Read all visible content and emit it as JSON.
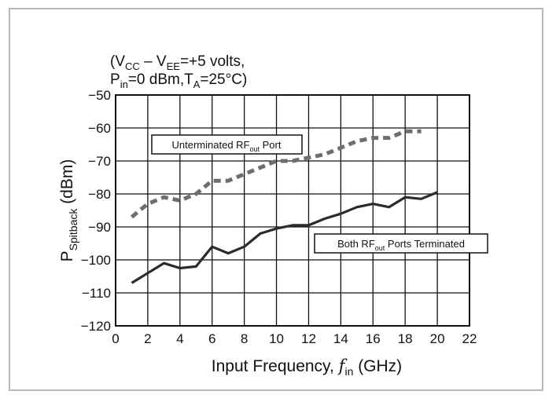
{
  "chart_data": {
    "type": "line",
    "title": "",
    "conditions": {
      "line1": {
        "prefix": "(V",
        "cc_sub": "CC",
        "mid": " – V",
        "ee_sub": "EE",
        "suffix": "=+5 volts,"
      },
      "line2": {
        "p_pre": "P",
        "p_sub": "in",
        "p_mid": "=0 dBm,T",
        "t_sub": "A",
        "p_post": "=25°C)"
      }
    },
    "xlabel": {
      "main": "Input Frequency, ",
      "var": "f",
      "sub": "in",
      "unit": " (GHz)"
    },
    "ylabel": {
      "main": "P",
      "sub": "Spitback",
      "unit": " (dBm)"
    },
    "xlim": [
      0,
      22
    ],
    "ylim": [
      -120,
      -50
    ],
    "x_ticks": [
      "0",
      "2",
      "4",
      "6",
      "8",
      "10",
      "12",
      "14",
      "16",
      "18",
      "20",
      "22"
    ],
    "y_ticks": [
      "−50",
      "−60",
      "−70",
      "−80",
      "−90",
      "−100",
      "−110",
      "−120"
    ],
    "grid": true,
    "series": [
      {
        "label": {
          "pre": "Unterminated RF",
          "sub": "out",
          "post": " Port"
        },
        "style": "dashed",
        "color": "#6e6e6e",
        "x": [
          1,
          2,
          3,
          4,
          5,
          6,
          7,
          8,
          9,
          10,
          11,
          12,
          13,
          14,
          15,
          16,
          17,
          18,
          19
        ],
        "y": [
          -87,
          -83,
          -81,
          -82,
          -80,
          -76,
          -76,
          -74,
          -72,
          -70,
          -70,
          -69,
          -68,
          -66,
          -64,
          -63,
          -63,
          -61,
          -61
        ]
      },
      {
        "label": {
          "pre": "Both RF",
          "sub": "out",
          "post": " Ports Terminated"
        },
        "style": "solid",
        "color": "#2b2b2b",
        "x": [
          1,
          2,
          3,
          4,
          5,
          6,
          7,
          8,
          9,
          10,
          11,
          12,
          13,
          14,
          15,
          16,
          17,
          18,
          19,
          20
        ],
        "y": [
          -107,
          -104,
          -101,
          -102.5,
          -102,
          -96,
          -98,
          -96,
          -92,
          -90.5,
          -89.5,
          -89.5,
          -87.5,
          -86,
          -84,
          -83,
          -84,
          -81,
          -81.5,
          -79.5
        ]
      }
    ]
  }
}
